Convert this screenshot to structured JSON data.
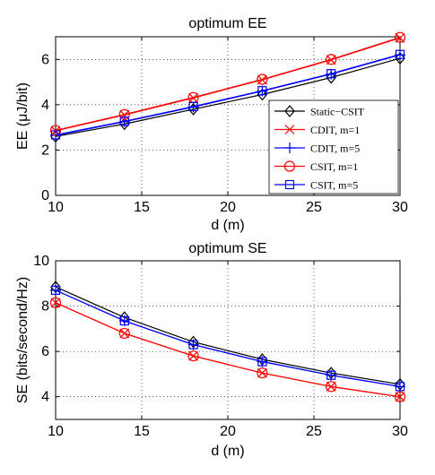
{
  "chart_data": [
    {
      "type": "line",
      "title": "optimum EE",
      "xlabel": "d (m)",
      "ylabel": "EE  (μJ/bit)",
      "xlim": [
        10,
        30
      ],
      "ylim": [
        0,
        7
      ],
      "xticks": [
        10,
        15,
        20,
        25,
        30
      ],
      "yticks": [
        0,
        2,
        4,
        6
      ],
      "grid": "dotted",
      "legend_position": "right",
      "x": [
        10,
        14,
        18,
        22,
        26,
        30
      ],
      "series": [
        {
          "name": "Static−CSIT",
          "color": "#000000",
          "marker": "diamond",
          "values": [
            2.6,
            3.15,
            3.8,
            4.45,
            5.2,
            6.05
          ]
        },
        {
          "name": "CDIT, m=1",
          "color": "#ff0000",
          "marker": "x",
          "values": [
            2.85,
            3.55,
            4.3,
            5.1,
            5.98,
            6.95
          ]
        },
        {
          "name": "CDIT, m=5",
          "color": "#0000ff",
          "marker": "plus",
          "values": [
            2.65,
            3.25,
            3.9,
            4.6,
            5.35,
            6.2
          ]
        },
        {
          "name": "CSIT, m=1",
          "color": "#ff0000",
          "marker": "circle",
          "values": [
            2.87,
            3.57,
            4.32,
            5.12,
            6.0,
            6.97
          ]
        },
        {
          "name": "CSIT, m=5",
          "color": "#0000ff",
          "marker": "square",
          "values": [
            2.67,
            3.27,
            3.92,
            4.62,
            5.37,
            6.22
          ]
        }
      ]
    },
    {
      "type": "line",
      "title": "optimum SE",
      "xlabel": "d (m)",
      "ylabel": "SE (bits/second/Hz)",
      "xlim": [
        10,
        30
      ],
      "ylim": [
        3,
        10
      ],
      "xticks": [
        10,
        15,
        20,
        25,
        30
      ],
      "yticks": [
        4,
        6,
        8,
        10
      ],
      "grid": "dotted",
      "x": [
        10,
        14,
        18,
        22,
        26,
        30
      ],
      "series": [
        {
          "name": "Static−CSIT",
          "color": "#000000",
          "marker": "diamond",
          "values": [
            8.85,
            7.5,
            6.42,
            5.65,
            5.05,
            4.55
          ]
        },
        {
          "name": "CDIT, m=1",
          "color": "#ff0000",
          "marker": "x",
          "values": [
            8.15,
            6.8,
            5.8,
            5.05,
            4.45,
            4.0
          ]
        },
        {
          "name": "CDIT, m=5",
          "color": "#0000ff",
          "marker": "plus",
          "values": [
            8.7,
            7.35,
            6.3,
            5.55,
            4.95,
            4.45
          ]
        },
        {
          "name": "CSIT, m=1",
          "color": "#ff0000",
          "marker": "circle",
          "values": [
            8.15,
            6.8,
            5.8,
            5.05,
            4.45,
            4.0
          ]
        },
        {
          "name": "CSIT, m=5",
          "color": "#0000ff",
          "marker": "square",
          "values": [
            8.7,
            7.35,
            6.3,
            5.55,
            4.95,
            4.45
          ]
        }
      ]
    }
  ]
}
